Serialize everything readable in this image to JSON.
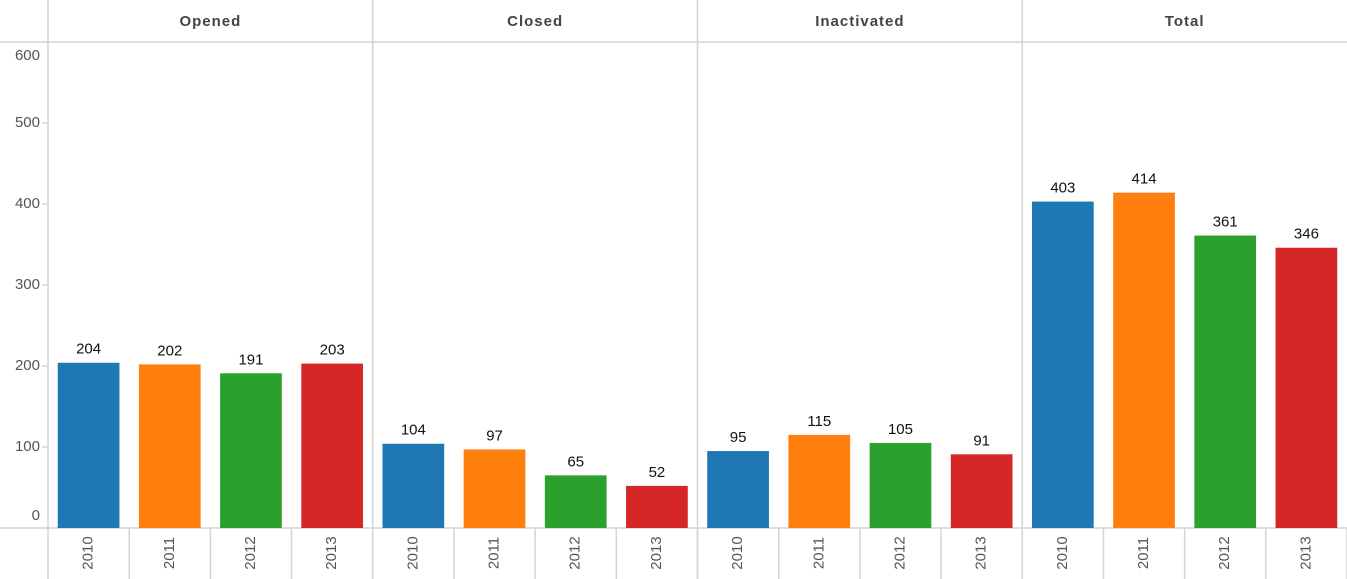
{
  "chart_data": {
    "type": "bar",
    "categories": [
      "Opened",
      "Closed",
      "Inactivated",
      "Total"
    ],
    "series": [
      {
        "name": "2010",
        "color": "#1f77b4",
        "values": [
          204,
          104,
          95,
          403
        ]
      },
      {
        "name": "2011",
        "color": "#ff7f0e",
        "values": [
          202,
          97,
          115,
          414
        ]
      },
      {
        "name": "2012",
        "color": "#2ca02c",
        "values": [
          191,
          65,
          105,
          361
        ]
      },
      {
        "name": "2013",
        "color": "#d62728",
        "values": [
          203,
          52,
          91,
          346
        ]
      }
    ],
    "ylim": [
      0,
      600
    ],
    "yticks": [
      0,
      100,
      200,
      300,
      400,
      500,
      600
    ]
  }
}
